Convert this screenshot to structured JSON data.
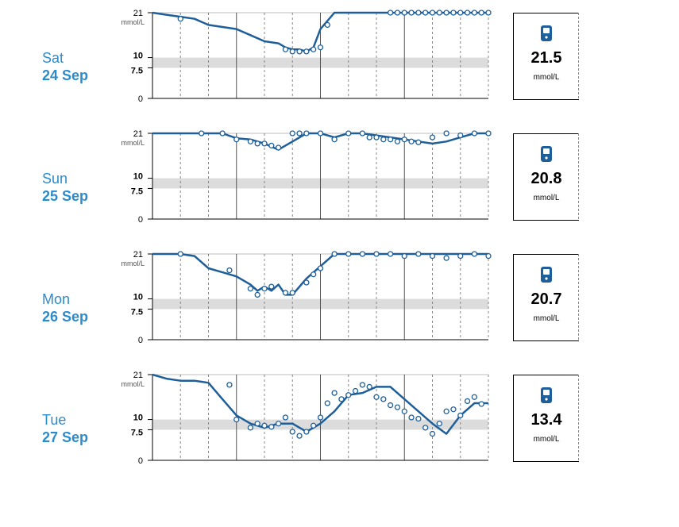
{
  "colors": {
    "accent": "#1f5f99",
    "label": "#2a8ccc",
    "band": "#dcdcdc"
  },
  "axis": {
    "unit_label": "mmol/L",
    "ticks": [
      "21",
      "10",
      "7.5",
      "0"
    ]
  },
  "meter_icon": "glucose-meter-icon",
  "chart_data": [
    {
      "type": "line",
      "day": "Sat",
      "date": "24 Sep",
      "summary_value": "21.5",
      "summary_unit": "mmol/L",
      "ylim": [
        0,
        21
      ],
      "target_range": [
        7.5,
        10
      ],
      "x_hours": [
        0,
        1,
        2,
        3,
        4,
        5,
        6,
        7,
        8,
        9,
        9.5,
        10,
        10.5,
        11,
        11.5,
        12,
        13,
        14,
        15,
        16,
        17,
        18,
        19,
        20,
        21,
        22,
        23,
        24
      ],
      "y": [
        21,
        20.5,
        20,
        19.5,
        18,
        17.5,
        17,
        15.5,
        14,
        13.5,
        12.5,
        12,
        12,
        11.5,
        12.5,
        17,
        21,
        21,
        21,
        21,
        21,
        21,
        21,
        21,
        21,
        21,
        21,
        21
      ],
      "points_hours": [
        2,
        9.5,
        10,
        10.5,
        11,
        11.5,
        12,
        12.5,
        17,
        17.5,
        18,
        18.5,
        19,
        19.5,
        20,
        20.5,
        21,
        21.5,
        22,
        22.5,
        23,
        23.5,
        24
      ],
      "points_y": [
        19.5,
        12,
        11.5,
        11.5,
        11.5,
        12,
        12.5,
        18,
        21,
        21,
        21,
        21,
        21,
        21,
        21,
        21,
        21,
        21,
        21,
        21,
        21,
        21,
        21
      ]
    },
    {
      "type": "line",
      "day": "Sun",
      "date": "25 Sep",
      "summary_value": "20.8",
      "summary_unit": "mmol/L",
      "ylim": [
        0,
        21
      ],
      "target_range": [
        7.5,
        10
      ],
      "x_hours": [
        0,
        3,
        4,
        5,
        6,
        7,
        8,
        9,
        10,
        11,
        12,
        13,
        14,
        15,
        16,
        17,
        18,
        19,
        20,
        21,
        22,
        23,
        24
      ],
      "y": [
        21,
        21,
        21,
        21,
        19.8,
        19.5,
        18.5,
        17,
        19,
        21,
        21,
        20,
        21,
        21,
        20.5,
        20,
        19.5,
        19,
        18.5,
        19,
        20,
        21,
        21
      ],
      "points_hours": [
        3.5,
        5,
        6,
        7,
        7.5,
        8,
        8.5,
        9,
        10,
        10.5,
        11,
        12,
        13,
        14,
        15,
        15.5,
        16,
        16.5,
        17,
        17.5,
        18,
        18.5,
        19,
        20,
        21,
        22,
        23,
        24
      ],
      "points_y": [
        21,
        21,
        19.5,
        19,
        18.5,
        18.5,
        18,
        17.5,
        21,
        21,
        21,
        21,
        19.5,
        21,
        21,
        20,
        20,
        19.5,
        19.5,
        19,
        19.5,
        19,
        18.8,
        20,
        21,
        20.5,
        21,
        21
      ]
    },
    {
      "type": "line",
      "day": "Mon",
      "date": "26 Sep",
      "summary_value": "20.7",
      "summary_unit": "mmol/L",
      "ylim": [
        0,
        21
      ],
      "target_range": [
        7.5,
        10
      ],
      "x_hours": [
        0,
        2,
        3,
        4,
        5,
        6,
        7,
        7.5,
        8,
        8.5,
        9,
        9.5,
        10,
        11,
        12,
        13,
        14,
        15,
        16,
        17,
        18,
        19,
        20,
        21,
        22,
        23,
        24
      ],
      "y": [
        21,
        21,
        20.5,
        17.5,
        16.5,
        15.5,
        13.5,
        12,
        13,
        12,
        13.5,
        11,
        11,
        15,
        18,
        21,
        21,
        21,
        21,
        21,
        21,
        21,
        21,
        21,
        21,
        21,
        21
      ],
      "points_hours": [
        2,
        5.5,
        7,
        7.5,
        8,
        8.5,
        9.5,
        10,
        11,
        11.5,
        12,
        13,
        14,
        15,
        16,
        17,
        18,
        19,
        20,
        21,
        22,
        23,
        24
      ],
      "points_y": [
        21,
        17,
        12.5,
        11,
        12.5,
        13,
        11.5,
        11.5,
        14,
        16,
        17.5,
        21,
        21,
        21,
        21,
        21,
        20.5,
        21,
        20.5,
        20,
        20.5,
        21,
        20.5
      ]
    },
    {
      "type": "line",
      "day": "Tue",
      "date": "27 Sep",
      "summary_value": "13.4",
      "summary_unit": "mmol/L",
      "ylim": [
        0,
        21
      ],
      "target_range": [
        7.5,
        10
      ],
      "x_hours": [
        0,
        1,
        2,
        3,
        4,
        5,
        6,
        7,
        8,
        9,
        10,
        11,
        12,
        13,
        14,
        15,
        16,
        17,
        18,
        19,
        20,
        21,
        22,
        23,
        24
      ],
      "y": [
        21,
        20,
        19.5,
        19.5,
        19,
        15,
        11,
        9,
        8,
        9,
        9,
        7,
        9,
        12,
        16,
        16.5,
        18,
        18,
        15,
        12,
        9,
        6.5,
        11,
        14,
        14
      ],
      "points_hours": [
        5.5,
        6,
        7,
        7.5,
        8,
        8.5,
        9,
        9.5,
        10,
        10.5,
        11,
        11.5,
        12,
        12.5,
        13,
        13.5,
        14,
        14.5,
        15,
        15.5,
        16,
        16.5,
        17,
        17.5,
        18,
        18.5,
        19,
        19.5,
        20,
        20.5,
        21,
        21.5,
        22,
        22.5,
        23,
        23.5
      ],
      "points_y": [
        18.5,
        10,
        8,
        9,
        8.5,
        8.2,
        9,
        10.5,
        7,
        6,
        7,
        8.5,
        10.5,
        14,
        16.5,
        15,
        16,
        17,
        18.5,
        18,
        15.5,
        15,
        13.5,
        13,
        12,
        10.5,
        10.2,
        8,
        6.5,
        9,
        12,
        12.5,
        11,
        14.5,
        15.5,
        13.8
      ]
    }
  ]
}
